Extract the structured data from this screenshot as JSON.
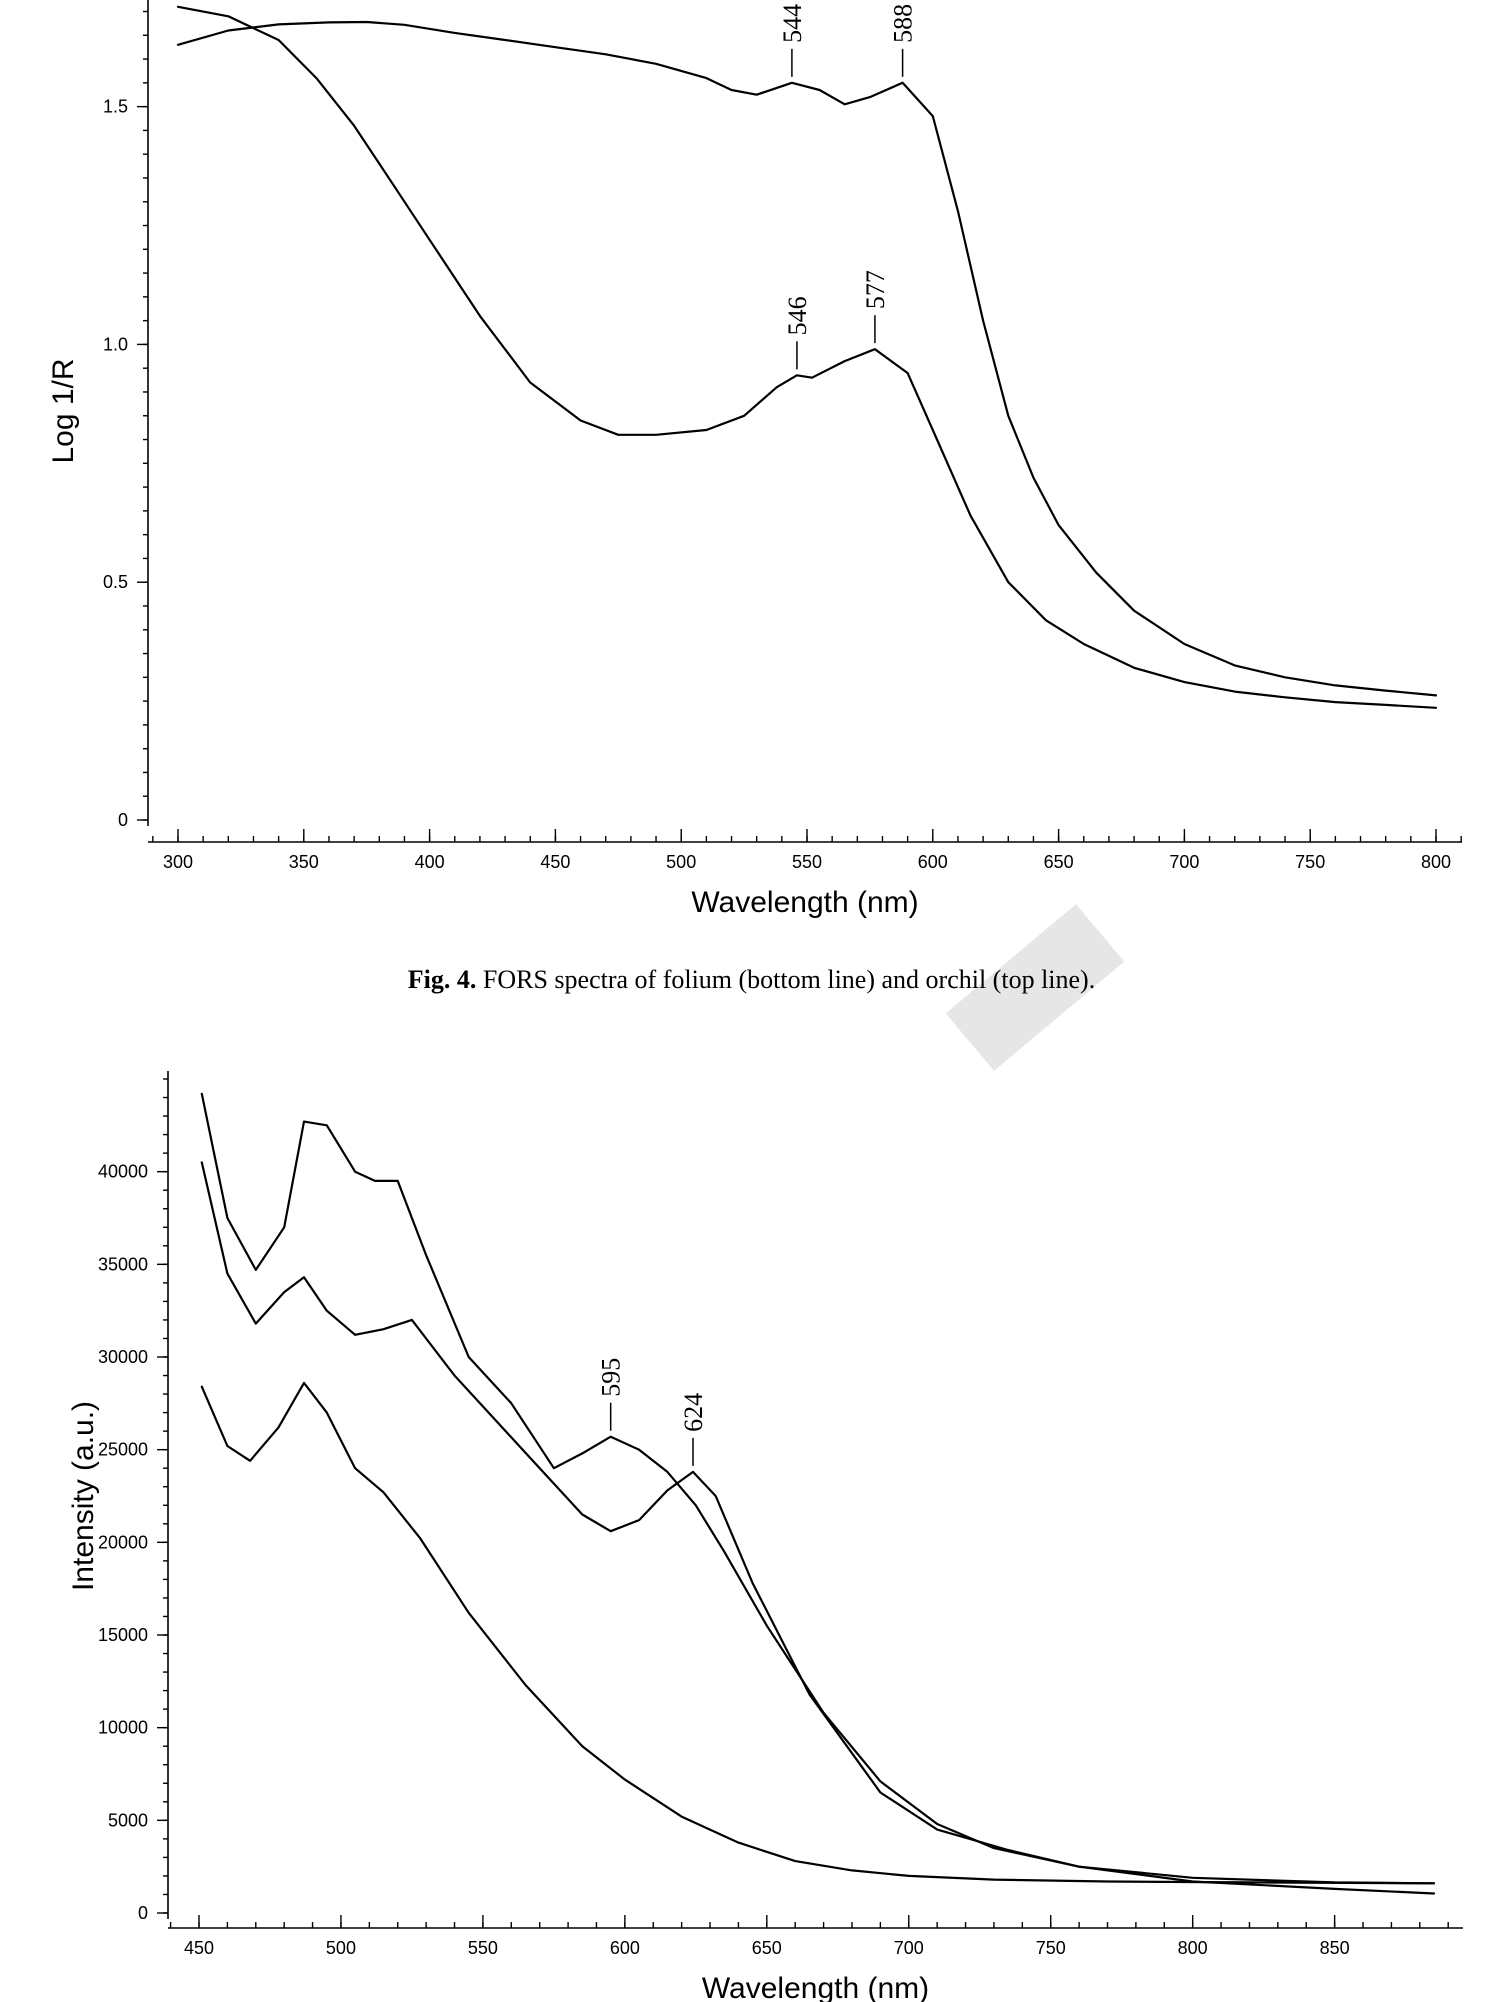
{
  "caption": {
    "label": "Fig. 4.",
    "text": "FORS spectra of folium (bottom line) and orchil (top line)."
  },
  "chart_data": [
    {
      "type": "line",
      "xlabel": "Wavelength (nm)",
      "ylabel": "Log 1/R",
      "xlim": [
        300,
        800
      ],
      "ylim": [
        0,
        1.72
      ],
      "xticks": [
        300,
        350,
        400,
        450,
        500,
        550,
        600,
        650,
        700,
        750,
        800
      ],
      "xtick_labels": [
        "300",
        "350",
        "400",
        "450",
        "500",
        "550",
        "600",
        "650",
        "700",
        "750",
        "800"
      ],
      "yticks": [
        0,
        0.5,
        1.0,
        1.5
      ],
      "ytick_labels": [
        "0",
        "0.5",
        "1.0",
        "1.5"
      ],
      "series": [
        {
          "x": [
            300,
            320,
            340,
            360,
            375,
            390,
            410,
            430,
            450,
            470,
            490,
            510,
            520,
            530,
            544,
            555,
            565,
            575,
            588,
            600,
            610,
            620,
            630,
            640,
            650,
            665,
            680,
            700,
            720,
            740,
            760,
            780,
            800
          ],
          "y": [
            1.63,
            1.66,
            1.673,
            1.677,
            1.678,
            1.672,
            1.655,
            1.64,
            1.625,
            1.61,
            1.59,
            1.56,
            1.535,
            1.525,
            1.55,
            1.535,
            1.505,
            1.52,
            1.55,
            1.48,
            1.28,
            1.05,
            0.85,
            0.72,
            0.62,
            0.52,
            0.44,
            0.37,
            0.325,
            0.3,
            0.283,
            0.272,
            0.262
          ]
        },
        {
          "x": [
            300,
            320,
            340,
            355,
            370,
            385,
            400,
            420,
            440,
            460,
            475,
            490,
            510,
            525,
            538,
            546,
            552,
            565,
            577,
            590,
            600,
            615,
            630,
            645,
            660,
            680,
            700,
            720,
            740,
            760,
            780,
            800
          ],
          "y": [
            1.71,
            1.69,
            1.64,
            1.56,
            1.46,
            1.34,
            1.22,
            1.06,
            0.92,
            0.84,
            0.81,
            0.81,
            0.82,
            0.85,
            0.91,
            0.935,
            0.93,
            0.965,
            0.99,
            0.94,
            0.82,
            0.64,
            0.5,
            0.42,
            0.37,
            0.32,
            0.29,
            0.27,
            0.258,
            0.248,
            0.242,
            0.236
          ]
        }
      ],
      "annotations": [
        {
          "text": "544",
          "x": 544,
          "y": 1.55
        },
        {
          "text": "588",
          "x": 588,
          "y": 1.55
        },
        {
          "text": "546",
          "x": 546,
          "y": 0.935
        },
        {
          "text": "577",
          "x": 577,
          "y": 0.99
        }
      ]
    },
    {
      "type": "line",
      "xlabel": "Wavelength (nm)",
      "ylabel": "Intensity (a.u.)",
      "xlim": [
        450,
        885
      ],
      "ylim": [
        0,
        45000
      ],
      "xticks": [
        450,
        500,
        550,
        600,
        650,
        700,
        750,
        800,
        850
      ],
      "xtick_labels": [
        "450",
        "500",
        "550",
        "600",
        "650",
        "700",
        "750",
        "800",
        "850"
      ],
      "yticks": [
        0,
        5000,
        10000,
        15000,
        20000,
        25000,
        30000,
        35000,
        40000
      ],
      "ytick_labels": [
        "0",
        "5000",
        "10000",
        "15000",
        "20000",
        "25000",
        "30000",
        "35000",
        "40000"
      ],
      "series": [
        {
          "x": [
            451,
            460,
            470,
            480,
            487,
            495,
            505,
            512,
            520,
            530,
            545,
            560,
            575,
            585,
            595,
            605,
            615,
            625,
            635,
            650,
            670,
            690,
            710,
            730,
            760,
            800,
            850,
            885
          ],
          "y": [
            44200,
            37500,
            34700,
            37000,
            42700,
            42500,
            40000,
            39500,
            39500,
            35500,
            30000,
            27500,
            24000,
            24800,
            25700,
            25000,
            23800,
            22000,
            19500,
            15500,
            10800,
            7100,
            4800,
            3500,
            2500,
            1900,
            1650,
            1600
          ]
        },
        {
          "x": [
            451,
            460,
            470,
            480,
            487,
            495,
            505,
            515,
            525,
            540,
            555,
            570,
            585,
            595,
            605,
            615,
            624,
            632,
            645,
            665,
            690,
            710,
            735,
            760,
            800,
            850,
            885
          ],
          "y": [
            40500,
            34500,
            31800,
            33500,
            34300,
            32500,
            31200,
            31500,
            32000,
            29000,
            26500,
            24000,
            21500,
            20600,
            21200,
            22800,
            23800,
            22500,
            17800,
            11800,
            6500,
            4500,
            3400,
            2500,
            1700,
            1300,
            1050
          ]
        },
        {
          "x": [
            451,
            460,
            468,
            478,
            487,
            495,
            505,
            515,
            528,
            545,
            565,
            585,
            600,
            620,
            640,
            660,
            680,
            700,
            730,
            770,
            820,
            885
          ],
          "y": [
            28400,
            25200,
            24400,
            26200,
            28600,
            27000,
            24000,
            22700,
            20200,
            16200,
            12300,
            9000,
            7200,
            5200,
            3800,
            2800,
            2300,
            2000,
            1800,
            1700,
            1650,
            1600
          ]
        }
      ],
      "annotations": [
        {
          "text": "595",
          "x": 595,
          "y": 25700
        },
        {
          "text": "624",
          "x": 624,
          "y": 23800
        }
      ]
    }
  ]
}
